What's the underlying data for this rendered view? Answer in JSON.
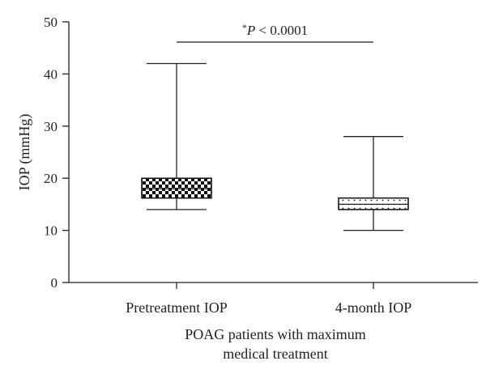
{
  "chart_data": {
    "type": "box",
    "ylabel": "IOP (mmHg)",
    "xlabel_lines": [
      "POAG patients with maximum",
      "medical treatment"
    ],
    "ylim": [
      0,
      50
    ],
    "yticks": [
      0,
      10,
      20,
      30,
      40,
      50
    ],
    "yticks_text": [
      "0",
      "10",
      "20",
      "30",
      "40",
      "50"
    ],
    "grid": false,
    "categories": [
      "Pretreatment IOP",
      "4-month IOP"
    ],
    "series": [
      {
        "category": "Pretreatment IOP",
        "min": 14,
        "q1": 16.2,
        "median": 18,
        "q3": 20,
        "max": 42,
        "fill": "checkerboard"
      },
      {
        "category": "4-month IOP",
        "min": 10,
        "q1": 14,
        "median": 15,
        "q3": 16.2,
        "max": 28,
        "fill": "dotted"
      }
    ],
    "annotation": {
      "star": "*",
      "italic": "P",
      "text": " < 0.0001",
      "between": [
        "Pretreatment IOP",
        "4-month IOP"
      ]
    }
  },
  "colors": {
    "ink": "#222222",
    "background": "#ffffff",
    "box_outline": "#1a1a1a"
  }
}
